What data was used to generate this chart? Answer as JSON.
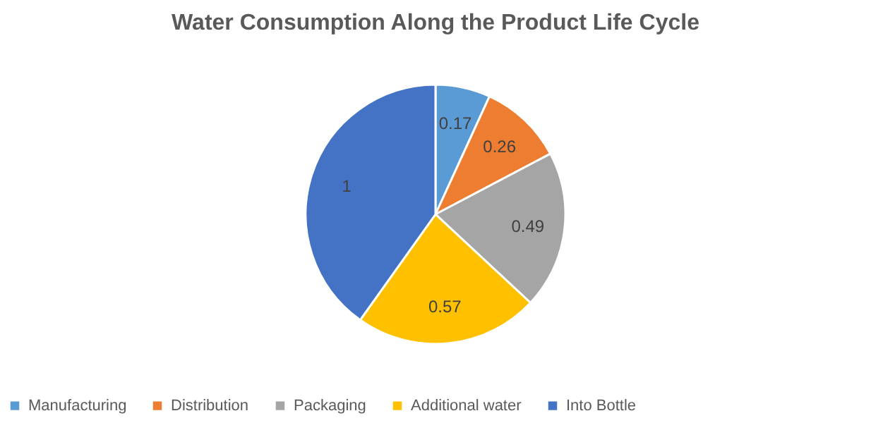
{
  "chart_data": {
    "type": "pie",
    "title": "Water Consumption Along the Product Life Cycle",
    "categories": [
      "Manufacturing",
      "Distribution",
      "Packaging",
      "Additional water",
      "Into Bottle"
    ],
    "values": [
      0.17,
      0.26,
      0.49,
      0.57,
      1
    ],
    "colors": [
      "#5b9bd5",
      "#ed7d31",
      "#a5a5a5",
      "#ffc000",
      "#4472c4"
    ],
    "data_labels": true,
    "legend": "bottom"
  }
}
